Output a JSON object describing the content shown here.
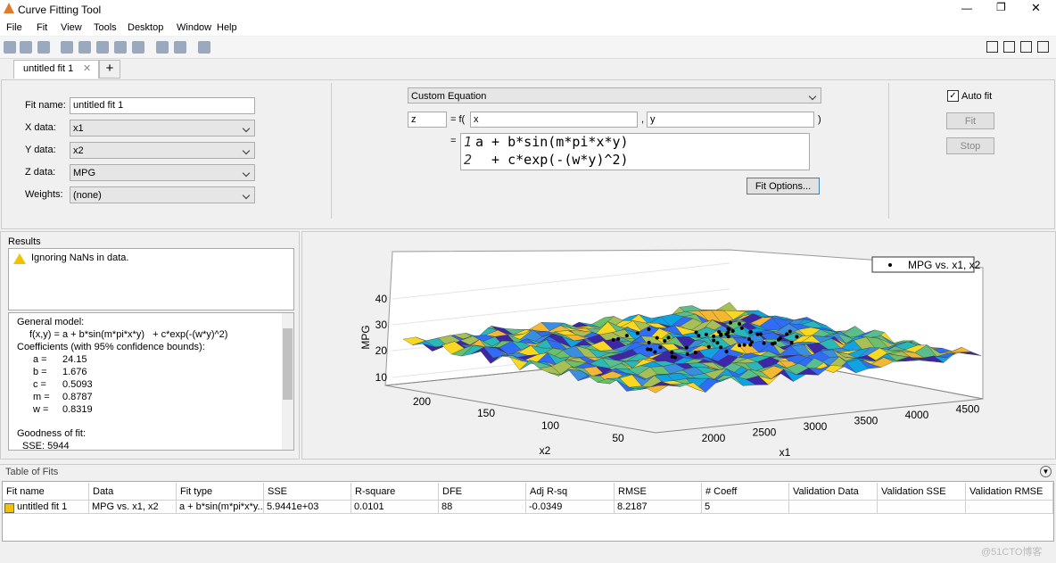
{
  "window": {
    "title": "Curve Fitting Tool",
    "menu": [
      "File",
      "Fit",
      "View",
      "Tools",
      "Desktop",
      "Window",
      "Help"
    ]
  },
  "tab": {
    "label": "untitled fit 1",
    "add": "+"
  },
  "fit_panel": {
    "fields": [
      {
        "label": "Fit name:",
        "value": "untitled fit 1"
      },
      {
        "label": "X data:",
        "value": "x1"
      },
      {
        "label": "Y data:",
        "value": "x2"
      },
      {
        "label": "Z data:",
        "value": "MPG"
      },
      {
        "label": "Weights:",
        "value": "(none)"
      }
    ],
    "equation_type": "Custom Equation",
    "output": "z",
    "equals_f": "= f(",
    "arg1": "x",
    "comma": ",",
    "arg2": "y",
    "close": ")",
    "eq_equals": "=",
    "equation_lines": [
      {
        "num": "1",
        "text": "a + b*sin(m*pi*x*y)"
      },
      {
        "num": "2",
        "text": "  + c*exp(-(w*y)^2)"
      }
    ],
    "fit_options": "Fit Options...",
    "auto_fit": "Auto fit",
    "fit": "Fit",
    "stop": "Stop"
  },
  "results": {
    "title": "Results",
    "warning": "Ignoring NaNs in data.",
    "general": "General model:",
    "model": "f(x,y) = a + b*sin(m*pi*x*y)   + c*exp(-(w*y)^2)",
    "coef_title": "Coefficients (with 95% confidence bounds):",
    "coefficients": [
      {
        "name": "a =",
        "value": "24.15"
      },
      {
        "name": "b =",
        "value": "1.676"
      },
      {
        "name": "c =",
        "value": "0.5093"
      },
      {
        "name": "m =",
        "value": "0.8787"
      },
      {
        "name": "w =",
        "value": "0.8319"
      }
    ],
    "goodness": "Goodness of fit:",
    "sse": "SSE: 5944"
  },
  "plot": {
    "legend": "MPG vs. x1, x2",
    "zlabel": "MPG",
    "zticks": [
      "10",
      "20",
      "30",
      "40"
    ],
    "x2label": "x2",
    "x2ticks": [
      "50",
      "100",
      "150",
      "200"
    ],
    "x1label": "x1",
    "x1ticks": [
      "2000",
      "2500",
      "3000",
      "3500",
      "4000",
      "4500"
    ]
  },
  "table": {
    "title": "Table of Fits",
    "headers": [
      "Fit name",
      "Data",
      "Fit type",
      "SSE",
      "R-square",
      "DFE",
      "Adj R-sq",
      "RMSE",
      "# Coeff",
      "Validation Data",
      "Validation SSE",
      "Validation RMSE"
    ],
    "rows": [
      [
        "untitled fit 1",
        "MPG vs. x1, x2",
        "a + b*sin(m*pi*x*y...",
        "5.9441e+03",
        "0.0101",
        "88",
        "-0.0349",
        "8.2187",
        "5"
      ]
    ]
  },
  "watermark": "@51CTO博客"
}
